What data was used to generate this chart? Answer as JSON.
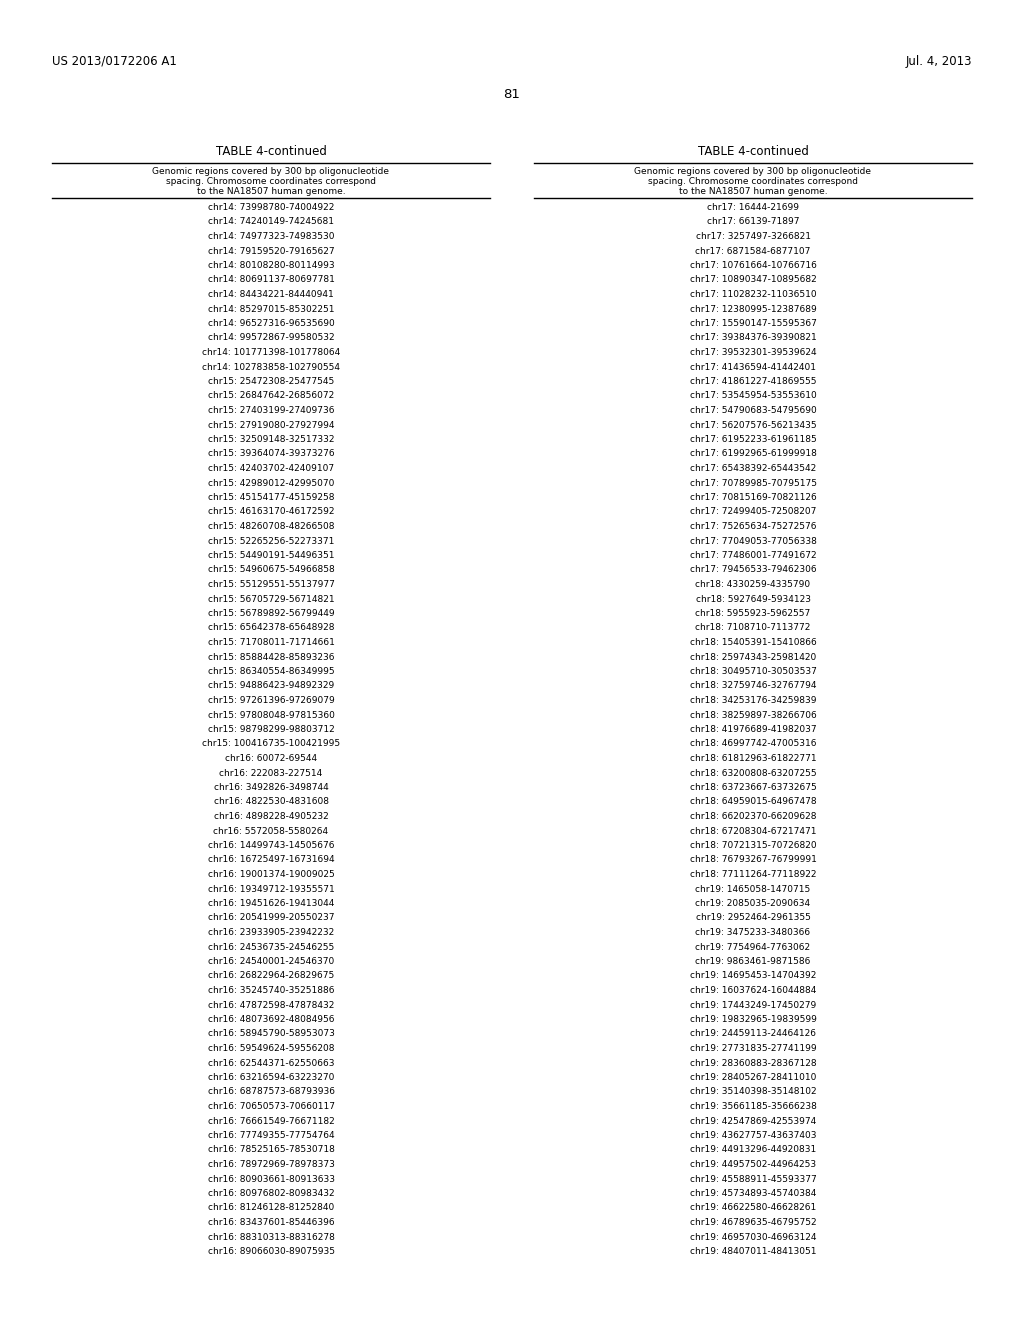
{
  "header_left": "US 2013/0172206 A1",
  "header_right": "Jul. 4, 2013",
  "page_number": "81",
  "table_title": "TABLE 4-continued",
  "col_header_line1": "Genomic regions covered by 300 bp oligonucleotide",
  "col_header_line2": "spacing. Chromosome coordinates correspond",
  "col_header_line3": "to the NA18507 human genome.",
  "left_data": [
    "chr14: 73998780-74004922",
    "chr14: 74240149-74245681",
    "chr14: 74977323-74983530",
    "chr14: 79159520-79165627",
    "chr14: 80108280-80114993",
    "chr14: 80691137-80697781",
    "chr14: 84434221-84440941",
    "chr14: 85297015-85302251",
    "chr14: 96527316-96535690",
    "chr14: 99572867-99580532",
    "chr14: 101771398-101778064",
    "chr14: 102783858-102790554",
    "chr15: 25472308-25477545",
    "chr15: 26847642-26856072",
    "chr15: 27403199-27409736",
    "chr15: 27919080-27927994",
    "chr15: 32509148-32517332",
    "chr15: 39364074-39373276",
    "chr15: 42403702-42409107",
    "chr15: 42989012-42995070",
    "chr15: 45154177-45159258",
    "chr15: 46163170-46172592",
    "chr15: 48260708-48266508",
    "chr15: 52265256-52273371",
    "chr15: 54490191-54496351",
    "chr15: 54960675-54966858",
    "chr15: 55129551-55137977",
    "chr15: 56705729-56714821",
    "chr15: 56789892-56799449",
    "chr15: 65642378-65648928",
    "chr15: 71708011-71714661",
    "chr15: 85884428-85893236",
    "chr15: 86340554-86349995",
    "chr15: 94886423-94892329",
    "chr15: 97261396-97269079",
    "chr15: 97808048-97815360",
    "chr15: 98798299-98803712",
    "chr15: 100416735-100421995",
    "chr16: 60072-69544",
    "chr16: 222083-227514",
    "chr16: 3492826-3498744",
    "chr16: 4822530-4831608",
    "chr16: 4898228-4905232",
    "chr16: 5572058-5580264",
    "chr16: 14499743-14505676",
    "chr16: 16725497-16731694",
    "chr16: 19001374-19009025",
    "chr16: 19349712-19355571",
    "chr16: 19451626-19413044",
    "chr16: 20541999-20550237",
    "chr16: 23933905-23942232",
    "chr16: 24536735-24546255",
    "chr16: 24540001-24546370",
    "chr16: 26822964-26829675",
    "chr16: 35245740-35251886",
    "chr16: 47872598-47878432",
    "chr16: 48073692-48084956",
    "chr16: 58945790-58953073",
    "chr16: 59549624-59556208",
    "chr16: 62544371-62550663",
    "chr16: 63216594-63223270",
    "chr16: 68787573-68793936",
    "chr16: 70650573-70660117",
    "chr16: 76661549-76671182",
    "chr16: 77749355-77754764",
    "chr16: 78525165-78530718",
    "chr16: 78972969-78978373",
    "chr16: 80903661-80913633",
    "chr16: 80976802-80983432",
    "chr16: 81246128-81252840",
    "chr16: 83437601-85446396",
    "chr16: 88310313-88316278",
    "chr16: 89066030-89075935"
  ],
  "right_data": [
    "chr17: 16444-21699",
    "chr17: 66139-71897",
    "chr17: 3257497-3266821",
    "chr17: 6871584-6877107",
    "chr17: 10761664-10766716",
    "chr17: 10890347-10895682",
    "chr17: 11028232-11036510",
    "chr17: 12380995-12387689",
    "chr17: 15590147-15595367",
    "chr17: 39384376-39390821",
    "chr17: 39532301-39539624",
    "chr17: 41436594-41442401",
    "chr17: 41861227-41869555",
    "chr17: 53545954-53553610",
    "chr17: 54790683-54795690",
    "chr17: 56207576-56213435",
    "chr17: 61952233-61961185",
    "chr17: 61992965-61999918",
    "chr17: 65438392-65443542",
    "chr17: 70789985-70795175",
    "chr17: 70815169-70821126",
    "chr17: 72499405-72508207",
    "chr17: 75265634-75272576",
    "chr17: 77049053-77056338",
    "chr17: 77486001-77491672",
    "chr17: 79456533-79462306",
    "chr18: 4330259-4335790",
    "chr18: 5927649-5934123",
    "chr18: 5955923-5962557",
    "chr18: 7108710-7113772",
    "chr18: 15405391-15410866",
    "chr18: 25974343-25981420",
    "chr18: 30495710-30503537",
    "chr18: 32759746-32767794",
    "chr18: 34253176-34259839",
    "chr18: 38259897-38266706",
    "chr18: 41976689-41982037",
    "chr18: 46997742-47005316",
    "chr18: 61812963-61822771",
    "chr18: 63200808-63207255",
    "chr18: 63723667-63732675",
    "chr18: 64959015-64967478",
    "chr18: 66202370-66209628",
    "chr18: 67208304-67217471",
    "chr18: 70721315-70726820",
    "chr18: 76793267-76799991",
    "chr18: 77111264-77118922",
    "chr19: 1465058-1470715",
    "chr19: 2085035-2090634",
    "chr19: 2952464-2961355",
    "chr19: 3475233-3480366",
    "chr19: 7754964-7763062",
    "chr19: 9863461-9871586",
    "chr19: 14695453-14704392",
    "chr19: 16037624-16044884",
    "chr19: 17443249-17450279",
    "chr19: 19832965-19839599",
    "chr19: 24459113-24464126",
    "chr19: 27731835-27741199",
    "chr19: 28360883-28367128",
    "chr19: 28405267-28411010",
    "chr19: 35140398-35148102",
    "chr19: 35661185-35666238",
    "chr19: 42547869-42553974",
    "chr19: 43627757-43637403",
    "chr19: 44913296-44920831",
    "chr19: 44957502-44964253",
    "chr19: 45588911-45593377",
    "chr19: 45734893-45740384",
    "chr19: 46622580-46628261",
    "chr19: 46789635-46795752",
    "chr19: 46957030-46963124",
    "chr19: 48407011-48413051"
  ],
  "bg_color": "#ffffff",
  "text_color": "#000000",
  "font_size_header": 8.5,
  "font_size_title": 8.5,
  "font_size_data": 6.5,
  "font_size_col_header": 6.5,
  "font_size_page": 9.5
}
